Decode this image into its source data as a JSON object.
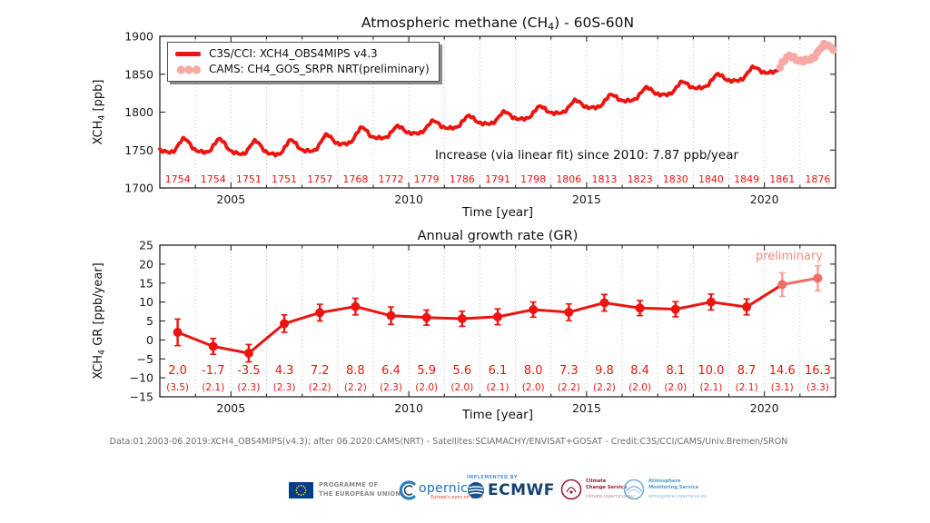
{
  "colors": {
    "red": "#eb140f",
    "pink_dots": "#f7aaa5",
    "salmon": "#f06e64",
    "salmon_light": "#f7a098",
    "preliminary_text": "#f48a80",
    "grid": "#bbbbbb",
    "frame": "#262626",
    "tick_text": "#1a1a1a",
    "note_text": "#111111",
    "footer_text": "#6e6e6e"
  },
  "top_chart": {
    "title_pre": "Atmospheric methane (CH",
    "title_sub": "4",
    "title_post": ") - 60S-60N",
    "ylabel_pre": "XCH",
    "ylabel_sub": "4",
    "ylabel_post": " [ppb]"
  },
  "bottom_chart": {
    "ylabel_pre": "XCH",
    "ylabel_sub": "4",
    "ylabel_post": " GR [ppb/year]"
  },
  "chart_data": [
    {
      "type": "line",
      "title": "Atmospheric methane (CH4) - 60S-60N",
      "xlabel": "Time [year]",
      "ylabel": "XCH4 [ppb]",
      "xlim": [
        2003,
        2022
      ],
      "ylim": [
        1700,
        1900
      ],
      "xticks": [
        2005,
        2010,
        2015,
        2020
      ],
      "yticks": [
        1700,
        1750,
        1800,
        1850,
        1900
      ],
      "grid": "vertical dotted line per year",
      "legend_position": "upper left",
      "series": [
        {
          "name": "C3S/CCI: XCH4_OBS4MIPS v4.3",
          "style": "thick solid red monthly line with seasonal cycle",
          "color": "#eb140f",
          "coverage_years": [
            2003.0,
            2020.4
          ],
          "years": [
            2003,
            2004,
            2005,
            2006,
            2007,
            2008,
            2009,
            2010,
            2011,
            2012,
            2013,
            2014,
            2015,
            2016,
            2017,
            2018,
            2019,
            2020,
            2021
          ],
          "annual_mean_ppb": [
            1754,
            1754,
            1751,
            1751,
            1757,
            1768,
            1772,
            1779,
            1786,
            1791,
            1798,
            1806,
            1813,
            1823,
            1830,
            1840,
            1849,
            1861,
            1876
          ],
          "seasonal_amplitude_ppb": 10
        },
        {
          "name": "CAMS: CH4_GOS_SRPR NRT(preliminary)",
          "style": "chain of light pink dots",
          "color": "#f7aaa5",
          "coverage_years": [
            2020.4,
            2022.0
          ],
          "approx_end_value_ppb": 1888
        }
      ],
      "annual_value_labels": [
        1754,
        1754,
        1751,
        1751,
        1757,
        1768,
        1772,
        1779,
        1786,
        1791,
        1798,
        1806,
        1813,
        1823,
        1830,
        1840,
        1849,
        1861,
        1876
      ],
      "annotation_note": "Increase (via linear fit) since 2010: 7.87 ppb/year"
    },
    {
      "type": "line-errorbar",
      "title": "Annual growth rate (GR)",
      "xlabel": "Time [year]",
      "ylabel": "XCH4 GR [ppb/year]",
      "xlim": [
        2003,
        2022
      ],
      "ylim": [
        -15,
        25
      ],
      "xticks": [
        2005,
        2010,
        2015,
        2020
      ],
      "yticks": [
        -15,
        -10,
        -5,
        0,
        5,
        10,
        15,
        20,
        25
      ],
      "grid": "vertical dotted line per year",
      "years": [
        2003,
        2004,
        2005,
        2006,
        2007,
        2008,
        2009,
        2010,
        2011,
        2012,
        2013,
        2014,
        2015,
        2016,
        2017,
        2018,
        2019,
        2020,
        2021
      ],
      "gr_ppb_per_year": [
        2.0,
        -1.7,
        -3.5,
        4.3,
        7.2,
        8.8,
        6.4,
        5.9,
        5.6,
        6.1,
        8.0,
        7.3,
        9.8,
        8.4,
        8.1,
        10.0,
        8.7,
        14.6,
        16.3
      ],
      "uncertainty": [
        3.5,
        2.1,
        2.3,
        2.3,
        2.2,
        2.2,
        2.3,
        2.0,
        2.0,
        2.1,
        2.0,
        2.2,
        2.2,
        2.0,
        2.0,
        2.1,
        2.1,
        3.1,
        3.3
      ],
      "preliminary_years": [
        2020,
        2021
      ],
      "preliminary_label": "preliminary"
    }
  ],
  "footer": {
    "credit": "Data:01.2003-06.2019:XCH4_OBS4MIPS(v4.3); after 06.2020:CAMS(NRT) - Satellites:SCIAMACHY/ENVISAT+GOSAT - Credit:C3S/CCI/CAMS/Univ.Bremen/SRON"
  },
  "logos": {
    "eu": {
      "line1": "PROGRAMME OF",
      "line2": "THE EUROPEAN UNION"
    },
    "copernicus": {
      "name": "opernicus",
      "tagline": "Europe's eyes on Earth"
    },
    "ecmwf": {
      "implemented_by": "IMPLEMENTED BY",
      "name": "ECMWF"
    },
    "c3s": {
      "line1": "Climate",
      "line2": "Change Service",
      "url": "climate.copernicus.eu"
    },
    "cams": {
      "line1": "Atmosphere",
      "line2": "Monitoring Service",
      "url": "atmosphere.copernicus.eu"
    }
  }
}
